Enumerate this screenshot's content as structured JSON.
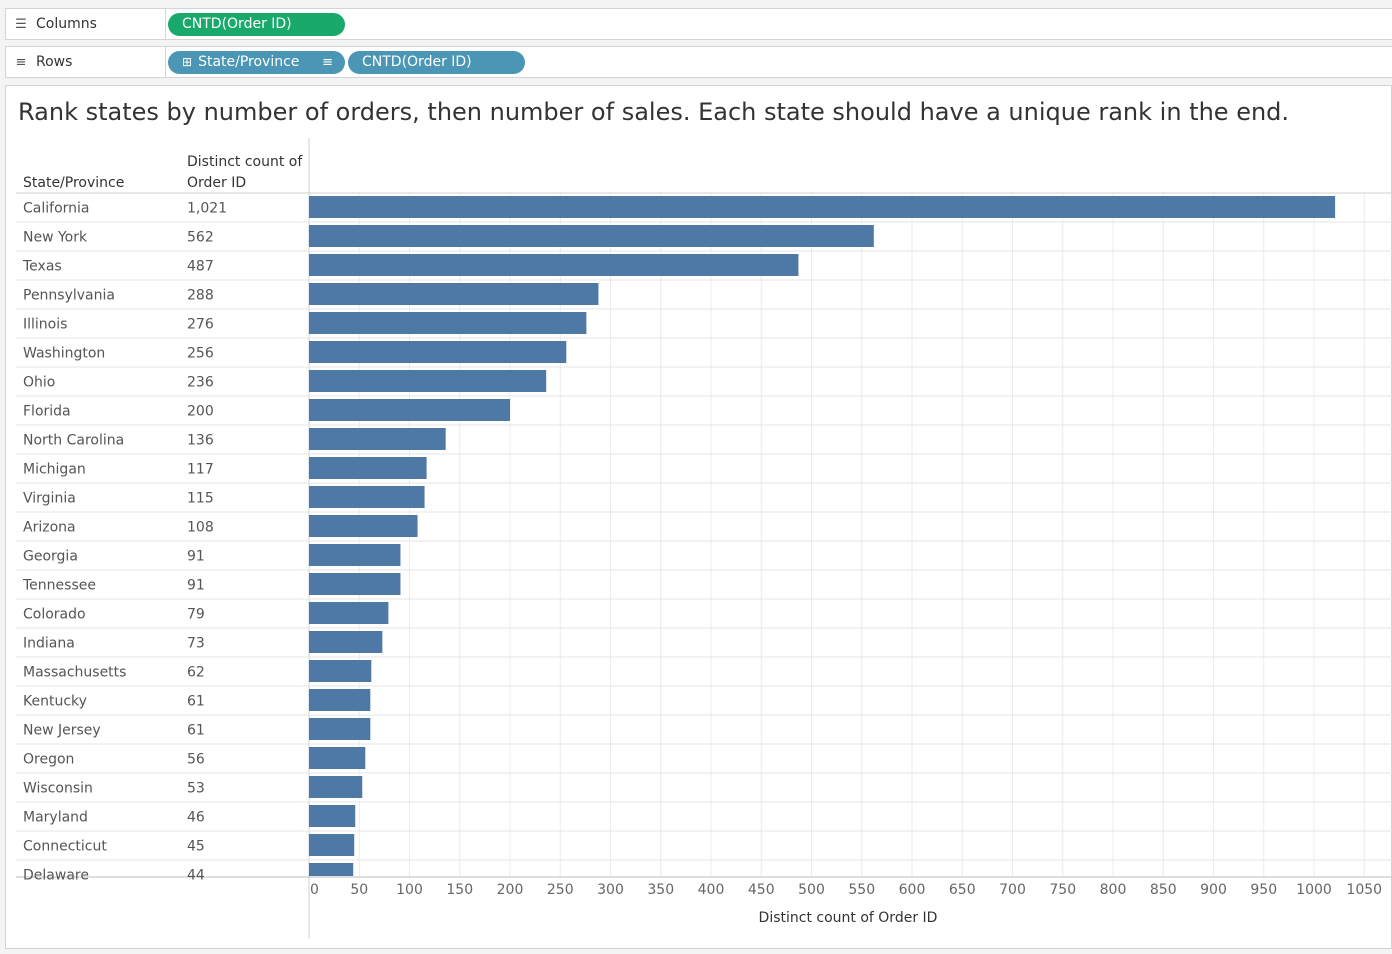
{
  "shelves": {
    "columns": {
      "label": "Columns",
      "icon": "columns-icon",
      "pills": [
        "CNTD(Order ID)"
      ]
    },
    "rows": {
      "label": "Rows",
      "icon": "rows-icon",
      "pills": [
        "State/Province",
        "CNTD(Order ID)"
      ]
    }
  },
  "colors": {
    "bar": "#4e79a7",
    "dimension_pill": "#4a96b4",
    "measure_pill": "#18a96b"
  },
  "chart_data": {
    "type": "bar",
    "orientation": "horizontal",
    "title": "Rank states by number of orders, then number of sales. Each state should have a unique rank in the end.",
    "row_header": "State/Province",
    "value_header": "Distinct count of Order ID",
    "xlabel": "Distinct count of Order ID",
    "xlim": [
      0,
      1070
    ],
    "xticks": [
      0,
      50,
      100,
      150,
      200,
      250,
      300,
      350,
      400,
      450,
      500,
      550,
      600,
      650,
      700,
      750,
      800,
      850,
      900,
      950,
      1000,
      1050
    ],
    "grid": true,
    "categories": [
      "California",
      "New York",
      "Texas",
      "Pennsylvania",
      "Illinois",
      "Washington",
      "Ohio",
      "Florida",
      "North Carolina",
      "Michigan",
      "Virginia",
      "Arizona",
      "Georgia",
      "Tennessee",
      "Colorado",
      "Indiana",
      "Massachusetts",
      "Kentucky",
      "New Jersey",
      "Oregon",
      "Wisconsin",
      "Maryland",
      "Connecticut",
      "Delaware"
    ],
    "values": [
      1021,
      562,
      487,
      288,
      276,
      256,
      236,
      200,
      136,
      117,
      115,
      108,
      91,
      91,
      79,
      73,
      62,
      61,
      61,
      56,
      53,
      46,
      45,
      44
    ],
    "value_labels": [
      "1,021",
      "562",
      "487",
      "288",
      "276",
      "256",
      "236",
      "200",
      "136",
      "117",
      "115",
      "108",
      "91",
      "91",
      "79",
      "73",
      "62",
      "61",
      "61",
      "56",
      "53",
      "46",
      "45",
      "44"
    ]
  }
}
